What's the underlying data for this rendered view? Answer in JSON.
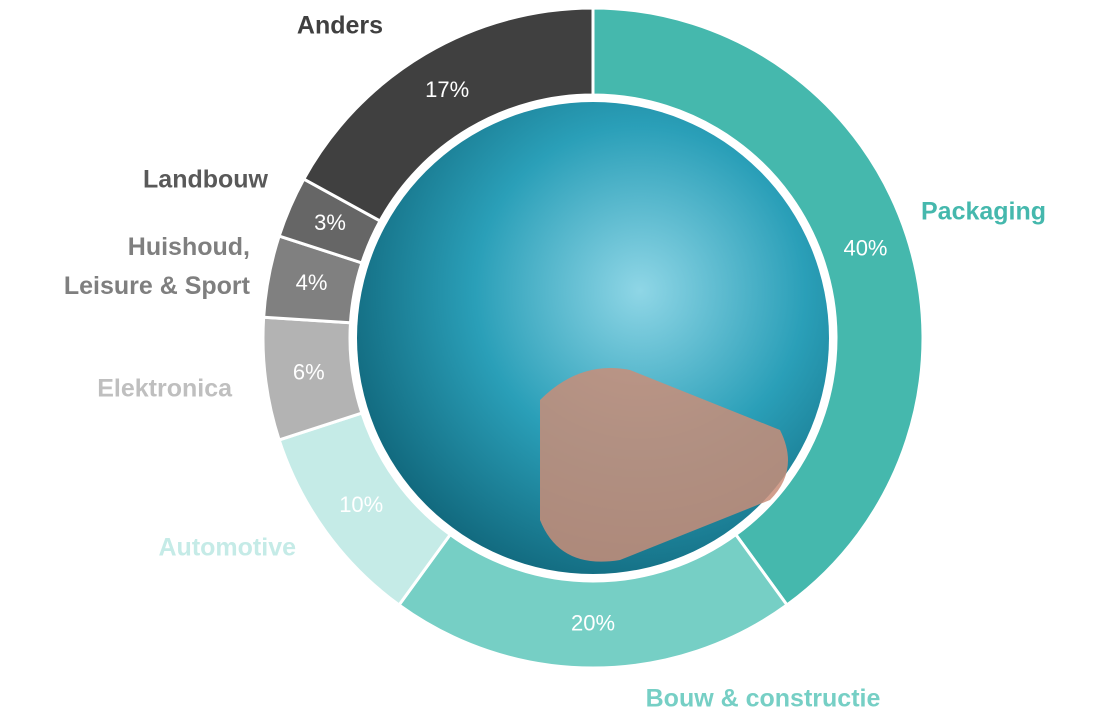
{
  "chart_data": {
    "type": "donut",
    "categories": [
      "Packaging",
      "Bouw & constructie",
      "Automotive",
      "Elektronica",
      "Huishoud, Leisure & Sport",
      "Landbouw",
      "Anders"
    ],
    "values": [
      40,
      20,
      10,
      6,
      4,
      3,
      17
    ],
    "value_labels": [
      "40%",
      "20%",
      "10%",
      "6%",
      "4%",
      "3%",
      "17%"
    ],
    "colors": [
      "#45b8ad",
      "#76cfc5",
      "#c5ebe7",
      "#b3b3b3",
      "#808080",
      "#666666",
      "#404040"
    ]
  }
}
